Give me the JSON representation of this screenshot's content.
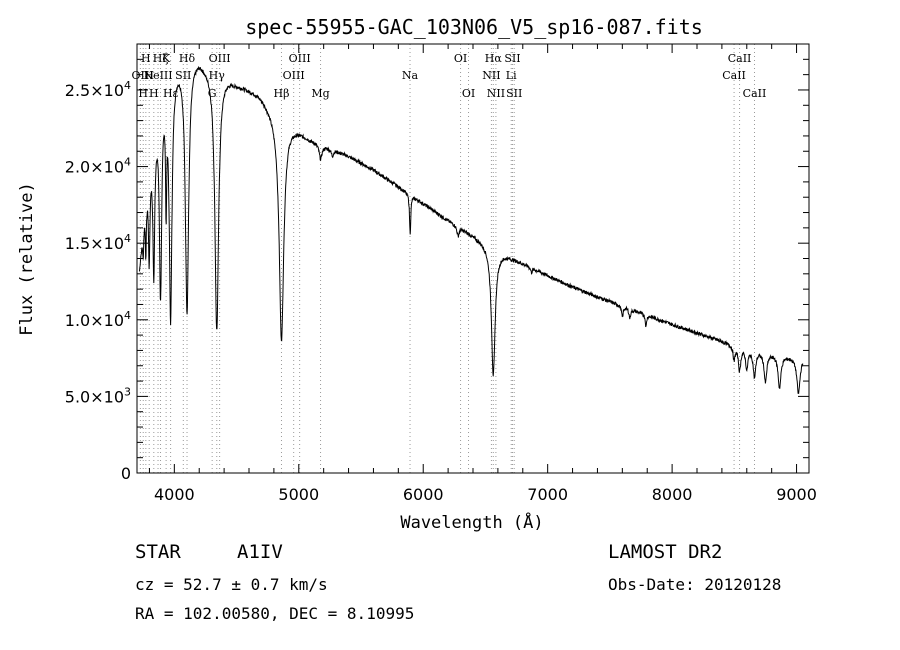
{
  "chart_data": {
    "type": "line",
    "title": "spec-55955-GAC_103N06_V5_sp16-087.fits",
    "xlabel": "Wavelength (Å)",
    "ylabel": "Flux (relative)",
    "xlim": [
      3700,
      9100
    ],
    "ylim": [
      0,
      28000
    ],
    "xticks": [
      {
        "v": 4000,
        "label": "4000"
      },
      {
        "v": 5000,
        "label": "5000"
      },
      {
        "v": 6000,
        "label": "6000"
      },
      {
        "v": 7000,
        "label": "7000"
      },
      {
        "v": 8000,
        "label": "8000"
      },
      {
        "v": 9000,
        "label": "9000"
      }
    ],
    "yticks": [
      {
        "v": 0,
        "label": "0",
        "m": "",
        "e": ""
      },
      {
        "v": 5000,
        "label": "",
        "m": "5.0",
        "e": "3"
      },
      {
        "v": 10000,
        "label": "",
        "m": "1.0",
        "e": "4"
      },
      {
        "v": 15000,
        "label": "",
        "m": "1.5",
        "e": "4"
      },
      {
        "v": 20000,
        "label": "",
        "m": "2.0",
        "e": "4"
      },
      {
        "v": 25000,
        "label": "",
        "m": "2.5",
        "e": "4"
      }
    ],
    "lines": [
      {
        "w": 3727,
        "label": "OII",
        "row": 1
      },
      {
        "w": 3750,
        "label": "H",
        "row": 2
      },
      {
        "w": 3771,
        "label": "H",
        "row": 0
      },
      {
        "w": 3798,
        "label": "H",
        "row": 1
      },
      {
        "w": 3835,
        "label": "H",
        "row": 2
      },
      {
        "w": 3869,
        "label": "NeIII",
        "row": 1
      },
      {
        "w": 3889,
        "label": "Hζ",
        "row": 0
      },
      {
        "w": 3934,
        "label": "K",
        "row": 0
      },
      {
        "w": 3970,
        "label": "Hε",
        "row": 2
      },
      {
        "w": 4072,
        "label": "SII",
        "row": 1
      },
      {
        "w": 4102,
        "label": "Hδ",
        "row": 0
      },
      {
        "w": 4304,
        "label": "G",
        "row": 2
      },
      {
        "w": 4341,
        "label": "Hγ",
        "row": 1
      },
      {
        "w": 4364,
        "label": "OIII",
        "row": 0
      },
      {
        "w": 4861,
        "label": "Hβ",
        "row": 2
      },
      {
        "w": 4959,
        "label": "OIII",
        "row": 1
      },
      {
        "w": 5007,
        "label": "OIII",
        "row": 0
      },
      {
        "w": 5175,
        "label": "Mg",
        "row": 2
      },
      {
        "w": 5894,
        "label": "Na",
        "row": 1
      },
      {
        "w": 6300,
        "label": "OI",
        "row": 0
      },
      {
        "w": 6364,
        "label": "OI",
        "row": 2
      },
      {
        "w": 6548,
        "label": "NII",
        "row": 1
      },
      {
        "w": 6563,
        "label": "Hα",
        "row": 0
      },
      {
        "w": 6584,
        "label": "NII",
        "row": 2
      },
      {
        "w": 6717,
        "label": "SII",
        "row": 0
      },
      {
        "w": 6707,
        "label": "Li",
        "row": 1
      },
      {
        "w": 6731,
        "label": "SII",
        "row": 2
      },
      {
        "w": 8498,
        "label": "CaII",
        "row": 1
      },
      {
        "w": 8542,
        "label": "CaII",
        "row": 0
      },
      {
        "w": 8662,
        "label": "CaII",
        "row": 2
      }
    ],
    "continuum": [
      [
        3720,
        13500
      ],
      [
        3760,
        17500
      ],
      [
        3800,
        20500
      ],
      [
        3850,
        23200
      ],
      [
        3900,
        25000
      ],
      [
        3950,
        26200
      ],
      [
        4000,
        26800
      ],
      [
        4050,
        27100
      ],
      [
        4100,
        27200
      ],
      [
        4150,
        27300
      ],
      [
        4200,
        27200
      ],
      [
        4250,
        26800
      ],
      [
        4300,
        26600
      ],
      [
        4350,
        26400
      ],
      [
        4400,
        26100
      ],
      [
        4450,
        25800
      ],
      [
        4500,
        25500
      ],
      [
        4550,
        25300
      ],
      [
        4600,
        25100
      ],
      [
        4650,
        24900
      ],
      [
        4700,
        24600
      ],
      [
        4750,
        24100
      ],
      [
        4800,
        23600
      ],
      [
        4850,
        23300
      ],
      [
        4900,
        23000
      ],
      [
        5000,
        22400
      ],
      [
        5100,
        21800
      ],
      [
        5200,
        21400
      ],
      [
        5400,
        20700
      ],
      [
        5600,
        19800
      ],
      [
        5800,
        18700
      ],
      [
        6000,
        17600
      ],
      [
        6200,
        16500
      ],
      [
        6400,
        15500
      ],
      [
        6600,
        14500
      ],
      [
        6800,
        13700
      ],
      [
        7000,
        12900
      ],
      [
        7200,
        12150
      ],
      [
        7400,
        11500
      ],
      [
        7600,
        10900
      ],
      [
        7800,
        10300
      ],
      [
        8000,
        9700
      ],
      [
        8200,
        9150
      ],
      [
        8400,
        8600
      ],
      [
        8500,
        8300
      ],
      [
        8600,
        8100
      ],
      [
        8700,
        7950
      ],
      [
        8800,
        7800
      ],
      [
        8900,
        7650
      ],
      [
        9000,
        7500
      ],
      [
        9050,
        7500
      ]
    ],
    "absorptions": [
      [
        3750,
        2000,
        5
      ],
      [
        3771,
        3500,
        5
      ],
      [
        3798,
        6000,
        7
      ],
      [
        3835,
        9000,
        9
      ],
      [
        3889,
        12500,
        11
      ],
      [
        3934,
        7000,
        5
      ],
      [
        3970,
        16000,
        13
      ],
      [
        4102,
        16500,
        16
      ],
      [
        4341,
        17000,
        18
      ],
      [
        4861,
        14500,
        22
      ],
      [
        5175,
        900,
        14
      ],
      [
        5270,
        400,
        10
      ],
      [
        5895,
        2500,
        6
      ],
      [
        6280,
        600,
        10
      ],
      [
        6563,
        8300,
        18
      ],
      [
        6870,
        300,
        8
      ],
      [
        7600,
        700,
        8
      ],
      [
        7660,
        600,
        8
      ],
      [
        7790,
        800,
        6
      ],
      [
        8498,
        900,
        9
      ],
      [
        8542,
        1500,
        11
      ],
      [
        8600,
        1300,
        10
      ],
      [
        8662,
        1700,
        12
      ],
      [
        8750,
        1900,
        13
      ],
      [
        8863,
        2100,
        14
      ],
      [
        9015,
        2300,
        15
      ]
    ],
    "noise_amplitude": 120,
    "line_label_color": "#000000",
    "marker_color": "#9a9a9a",
    "grid": false
  },
  "info": {
    "object_type": "STAR",
    "subclass": "A1IV",
    "survey": "LAMOST DR2",
    "redshift_text": "cz = 52.7 ± 0.7 km/s",
    "obs_date_text": "Obs-Date: 20120128",
    "coords_text": "RA = 102.00580, DEC =   8.10995"
  }
}
